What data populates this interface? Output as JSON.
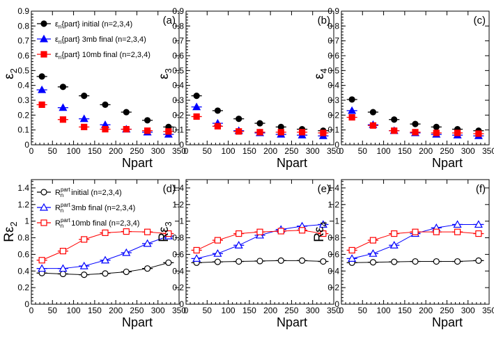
{
  "chart_data": [
    {
      "type": "scatter",
      "panel_label": "(a)",
      "xlabel": "Npart",
      "ylabel_main": "ε",
      "ylabel_sub": "2",
      "ylabel_prefix": "",
      "xlim": [
        0,
        350
      ],
      "ylim": [
        0,
        0.9
      ],
      "x_ticks": [
        "0",
        "50",
        "100",
        "150",
        "200",
        "250",
        "300",
        "350"
      ],
      "y_ticks": [
        "0",
        "0.1",
        "0.2",
        "0.3",
        "0.4",
        "0.5",
        "0.6",
        "0.7",
        "0.8",
        "0.9"
      ],
      "x": [
        25,
        75,
        125,
        175,
        225,
        275,
        325
      ],
      "legend": [
        {
          "pre": "ε",
          "sub": "n",
          "post": "{part} initial (n=2,3,4)"
        },
        {
          "pre": "ε",
          "sub": "n",
          "post": "{part} 3mb final (n=2,3,4)"
        },
        {
          "pre": "ε",
          "sub": "n",
          "post": "{part} 10mb final (n=2,3,4)"
        }
      ],
      "series": [
        {
          "name": "initial",
          "marker": "circle",
          "filled": true,
          "color": "#000000",
          "values": [
            0.46,
            0.39,
            0.33,
            0.27,
            0.22,
            0.165,
            0.12
          ]
        },
        {
          "name": "3mb final",
          "marker": "triangle",
          "filled": true,
          "color": "#0000ff",
          "values": [
            0.37,
            0.25,
            0.175,
            0.135,
            0.105,
            0.085,
            0.07
          ]
        },
        {
          "name": "10mb final",
          "marker": "square",
          "filled": true,
          "color": "#ff0000",
          "values": [
            0.27,
            0.17,
            0.12,
            0.105,
            0.105,
            0.095,
            0.09
          ]
        }
      ]
    },
    {
      "type": "scatter",
      "panel_label": "(b)",
      "xlabel": "Npart",
      "ylabel_main": "ε",
      "ylabel_sub": "3",
      "ylabel_prefix": "",
      "xlim": [
        0,
        350
      ],
      "ylim": [
        0,
        0.9
      ],
      "x_ticks": [
        "0",
        "50",
        "100",
        "150",
        "200",
        "250",
        "300",
        "350"
      ],
      "y_ticks": [
        "0",
        "0.1",
        "0.2",
        "0.3",
        "0.4",
        "0.5",
        "0.6",
        "0.7",
        "0.8",
        "0.9"
      ],
      "x": [
        25,
        75,
        125,
        175,
        225,
        275,
        325
      ],
      "legend": [],
      "series": [
        {
          "name": "initial",
          "marker": "circle",
          "filled": true,
          "color": "#000000",
          "values": [
            0.33,
            0.23,
            0.175,
            0.145,
            0.12,
            0.105,
            0.095
          ]
        },
        {
          "name": "3mb final",
          "marker": "triangle",
          "filled": true,
          "color": "#0000ff",
          "values": [
            0.255,
            0.145,
            0.095,
            0.08,
            0.07,
            0.065,
            0.06
          ]
        },
        {
          "name": "10mb final",
          "marker": "square",
          "filled": true,
          "color": "#ff0000",
          "values": [
            0.19,
            0.125,
            0.09,
            0.085,
            0.085,
            0.085,
            0.08
          ]
        }
      ]
    },
    {
      "type": "scatter",
      "panel_label": "(c)",
      "xlabel": "Npart",
      "ylabel_main": "ε",
      "ylabel_sub": "4",
      "ylabel_prefix": "",
      "xlim": [
        0,
        350
      ],
      "ylim": [
        0,
        0.9
      ],
      "x_ticks": [
        "0",
        "50",
        "100",
        "150",
        "200",
        "250",
        "300",
        "350"
      ],
      "y_ticks": [
        "0",
        "0.1",
        "0.2",
        "0.3",
        "0.4",
        "0.5",
        "0.6",
        "0.7",
        "0.8",
        "0.9"
      ],
      "x": [
        25,
        75,
        125,
        175,
        225,
        275,
        325
      ],
      "legend": [],
      "series": [
        {
          "name": "initial",
          "marker": "circle",
          "filled": true,
          "color": "#000000",
          "values": [
            0.305,
            0.22,
            0.17,
            0.14,
            0.12,
            0.105,
            0.095
          ]
        },
        {
          "name": "3mb final",
          "marker": "triangle",
          "filled": true,
          "color": "#0000ff",
          "values": [
            0.23,
            0.135,
            0.095,
            0.08,
            0.07,
            0.065,
            0.06
          ]
        },
        {
          "name": "10mb final",
          "marker": "square",
          "filled": true,
          "color": "#ff0000",
          "values": [
            0.185,
            0.13,
            0.095,
            0.085,
            0.08,
            0.08,
            0.075
          ]
        }
      ]
    },
    {
      "type": "scatter",
      "panel_label": "(d)",
      "xlabel": "Npart",
      "ylabel_main": "ε",
      "ylabel_sub": "2",
      "ylabel_prefix": "R",
      "xlim": [
        0,
        350
      ],
      "ylim": [
        0,
        1.5
      ],
      "x_ticks": [
        "0",
        "50",
        "100",
        "150",
        "200",
        "250",
        "300",
        "350"
      ],
      "y_ticks": [
        "0",
        "0.2",
        "0.4",
        "0.6",
        "0.8",
        "1",
        "1.2",
        "1.4"
      ],
      "x": [
        25,
        75,
        125,
        175,
        225,
        275,
        325
      ],
      "legend": [
        {
          "pre": "R",
          "sub": "n",
          "sup": "part",
          "post": " initial (n=2,3,4)"
        },
        {
          "pre": "R",
          "sub": "n",
          "sup": "part",
          "post": " 3mb final (n=2,3,4)"
        },
        {
          "pre": "R",
          "sub": "n",
          "sup": "part",
          "post": " 10mb final (n=2,3,4)"
        }
      ],
      "series": [
        {
          "name": "initial",
          "marker": "circle",
          "filled": false,
          "color": "#000000",
          "values": [
            0.375,
            0.365,
            0.355,
            0.37,
            0.39,
            0.43,
            0.5
          ]
        },
        {
          "name": "3mb final",
          "marker": "triangle",
          "filled": false,
          "color": "#0000ff",
          "values": [
            0.43,
            0.43,
            0.46,
            0.53,
            0.62,
            0.73,
            0.82
          ]
        },
        {
          "name": "10mb final",
          "marker": "square",
          "filled": false,
          "color": "#ff0000",
          "values": [
            0.53,
            0.64,
            0.78,
            0.86,
            0.875,
            0.87,
            0.85
          ]
        }
      ]
    },
    {
      "type": "scatter",
      "panel_label": "(e)",
      "xlabel": "Npart",
      "ylabel_main": "ε",
      "ylabel_sub": "3",
      "ylabel_prefix": "R",
      "xlim": [
        0,
        350
      ],
      "ylim": [
        0,
        1.5
      ],
      "x_ticks": [
        "0",
        "50",
        "100",
        "150",
        "200",
        "250",
        "300",
        "350"
      ],
      "y_ticks": [
        "0",
        "0.2",
        "0.4",
        "0.6",
        "0.8",
        "1",
        "1.2",
        "1.4"
      ],
      "x": [
        25,
        75,
        125,
        175,
        225,
        275,
        325
      ],
      "legend": [],
      "series": [
        {
          "name": "initial",
          "marker": "circle",
          "filled": false,
          "color": "#000000",
          "values": [
            0.5,
            0.51,
            0.515,
            0.52,
            0.525,
            0.525,
            0.515
          ]
        },
        {
          "name": "3mb final",
          "marker": "triangle",
          "filled": false,
          "color": "#0000ff",
          "values": [
            0.55,
            0.61,
            0.71,
            0.83,
            0.9,
            0.94,
            0.96
          ]
        },
        {
          "name": "10mb final",
          "marker": "square",
          "filled": false,
          "color": "#ff0000",
          "values": [
            0.65,
            0.77,
            0.85,
            0.87,
            0.88,
            0.89,
            0.85
          ]
        }
      ]
    },
    {
      "type": "scatter",
      "panel_label": "(f)",
      "xlabel": "Npart",
      "ylabel_main": "ε",
      "ylabel_sub": "4",
      "ylabel_prefix": "R",
      "xlim": [
        0,
        350
      ],
      "ylim": [
        0,
        1.5
      ],
      "x_ticks": [
        "0",
        "50",
        "100",
        "150",
        "200",
        "250",
        "300",
        "350"
      ],
      "y_ticks": [
        "0",
        "0.2",
        "0.4",
        "0.6",
        "0.8",
        "1",
        "1.2",
        "1.4"
      ],
      "x": [
        25,
        75,
        125,
        175,
        225,
        275,
        325
      ],
      "legend": [],
      "series": [
        {
          "name": "initial",
          "marker": "circle",
          "filled": false,
          "color": "#000000",
          "values": [
            0.5,
            0.505,
            0.51,
            0.515,
            0.515,
            0.515,
            0.525
          ]
        },
        {
          "name": "3mb final",
          "marker": "triangle",
          "filled": false,
          "color": "#0000ff",
          "values": [
            0.55,
            0.61,
            0.71,
            0.85,
            0.92,
            0.96,
            0.96
          ]
        },
        {
          "name": "10mb final",
          "marker": "square",
          "filled": false,
          "color": "#ff0000",
          "values": [
            0.65,
            0.77,
            0.85,
            0.87,
            0.87,
            0.87,
            0.85
          ]
        }
      ]
    }
  ]
}
